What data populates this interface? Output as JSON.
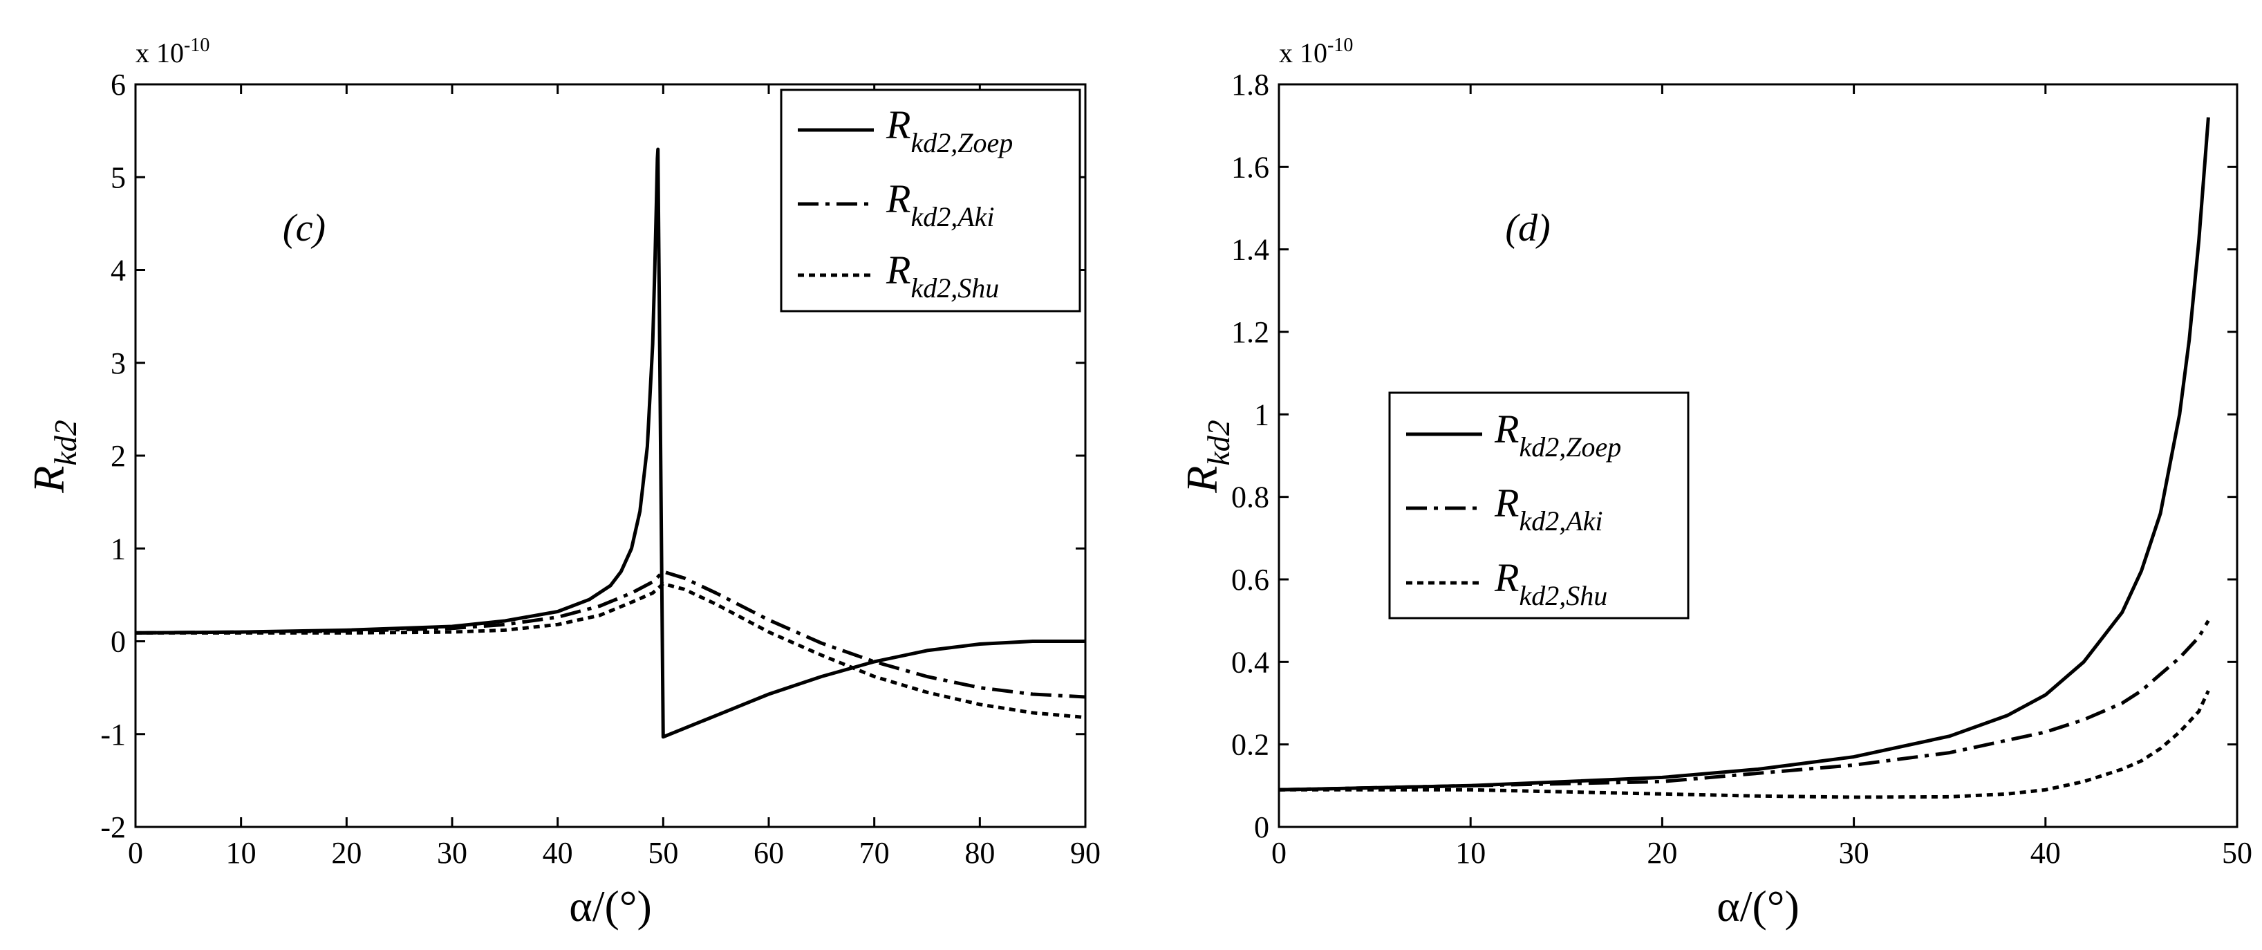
{
  "chart_data": [
    {
      "type": "line",
      "panel_label": "(c)",
      "xlabel": "α/(°)",
      "ylabel": "R",
      "ylabel_sub": "kd2",
      "y_exponent": {
        "base": "x 10",
        "power": "-10"
      },
      "xlim": [
        0,
        90
      ],
      "ylim": [
        -2,
        6
      ],
      "xticks": [
        "0",
        "10",
        "20",
        "30",
        "40",
        "50",
        "60",
        "70",
        "80",
        "90"
      ],
      "yticks": [
        "-2",
        "-1",
        "0",
        "1",
        "2",
        "3",
        "4",
        "5",
        "6"
      ],
      "grid": false,
      "legend_position": "top-right",
      "series": [
        {
          "name": "Zoep",
          "label_main": "R",
          "label_sub_italic": "kd2",
          "label_sub": ",Zoep",
          "style": "solid",
          "x": [
            0,
            10,
            20,
            30,
            35,
            40,
            43,
            45,
            46,
            47,
            47.8,
            48.5,
            49,
            49.2,
            49.35,
            49.45,
            49.5,
            50,
            55,
            60,
            65,
            70,
            75,
            80,
            85,
            90
          ],
          "y": [
            0.09,
            0.1,
            0.12,
            0.16,
            0.22,
            0.32,
            0.45,
            0.6,
            0.75,
            1.0,
            1.4,
            2.1,
            3.2,
            4.0,
            4.7,
            5.2,
            5.3,
            -1.03,
            -0.8,
            -0.57,
            -0.38,
            -0.22,
            -0.1,
            -0.03,
            0.0,
            0.0
          ]
        },
        {
          "name": "Aki",
          "label_main": "R",
          "label_sub_italic": "kd2",
          "label_sub": ",Aki",
          "style": "dashdot",
          "x": [
            0,
            10,
            20,
            30,
            35,
            40,
            44,
            47,
            49,
            50,
            52,
            55,
            60,
            65,
            70,
            75,
            80,
            85,
            90
          ],
          "y": [
            0.09,
            0.1,
            0.11,
            0.14,
            0.18,
            0.26,
            0.38,
            0.52,
            0.64,
            0.75,
            0.68,
            0.52,
            0.23,
            -0.02,
            -0.22,
            -0.38,
            -0.5,
            -0.57,
            -0.6
          ]
        },
        {
          "name": "Shu",
          "label_main": "R",
          "label_sub_italic": "kd2",
          "label_sub": ",Shu",
          "style": "dotted",
          "x": [
            0,
            10,
            20,
            30,
            35,
            40,
            44,
            47,
            49,
            50,
            52,
            55,
            60,
            65,
            70,
            75,
            80,
            85,
            90
          ],
          "y": [
            0.09,
            0.09,
            0.09,
            0.1,
            0.12,
            0.18,
            0.28,
            0.42,
            0.52,
            0.62,
            0.56,
            0.4,
            0.1,
            -0.15,
            -0.38,
            -0.55,
            -0.68,
            -0.77,
            -0.82
          ]
        }
      ]
    },
    {
      "type": "line",
      "panel_label": "(d)",
      "xlabel": "α/(°)",
      "ylabel": "R",
      "ylabel_sub": "kd2",
      "y_exponent": {
        "base": "x 10",
        "power": "-10"
      },
      "xlim": [
        0,
        50
      ],
      "ylim": [
        0,
        1.8
      ],
      "xticks": [
        "0",
        "10",
        "20",
        "30",
        "40",
        "50"
      ],
      "yticks": [
        "0",
        "0.2",
        "0.4",
        "0.6",
        "0.8",
        "1",
        "1.2",
        "1.4",
        "1.6",
        "1.8"
      ],
      "grid": false,
      "legend_position": "center-left",
      "series": [
        {
          "name": "Zoep",
          "label_main": "R",
          "label_sub_italic": "kd2",
          "label_sub": ",Zoep",
          "style": "solid",
          "x": [
            0,
            10,
            20,
            25,
            30,
            35,
            38,
            40,
            42,
            44,
            45,
            46,
            47,
            47.5,
            48,
            48.5
          ],
          "y": [
            0.09,
            0.1,
            0.12,
            0.14,
            0.17,
            0.22,
            0.27,
            0.32,
            0.4,
            0.52,
            0.62,
            0.76,
            1.0,
            1.18,
            1.42,
            1.72
          ]
        },
        {
          "name": "Aki",
          "label_main": "R",
          "label_sub_italic": "kd2",
          "label_sub": ",Aki",
          "style": "dashdot",
          "x": [
            0,
            10,
            20,
            25,
            30,
            35,
            38,
            40,
            42,
            44,
            45,
            46,
            47,
            48,
            48.5
          ],
          "y": [
            0.09,
            0.1,
            0.11,
            0.13,
            0.15,
            0.18,
            0.21,
            0.23,
            0.26,
            0.3,
            0.33,
            0.37,
            0.41,
            0.46,
            0.5
          ]
        },
        {
          "name": "Shu",
          "label_main": "R",
          "label_sub_italic": "kd2",
          "label_sub": ",Shu",
          "style": "dotted",
          "x": [
            0,
            10,
            20,
            25,
            30,
            35,
            38,
            40,
            42,
            44,
            45,
            46,
            47,
            48,
            48.5
          ],
          "y": [
            0.09,
            0.09,
            0.08,
            0.075,
            0.072,
            0.073,
            0.08,
            0.09,
            0.11,
            0.14,
            0.16,
            0.19,
            0.23,
            0.28,
            0.33
          ]
        }
      ]
    }
  ]
}
